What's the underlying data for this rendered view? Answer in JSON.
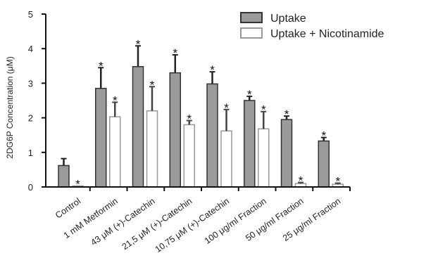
{
  "chart_data": {
    "type": "bar",
    "title": "",
    "xlabel": "",
    "ylabel": "2DG6P Concentration (μM)",
    "ylim": [
      0,
      5
    ],
    "yticks": [
      "0",
      "1",
      "2",
      "3",
      "4",
      "5"
    ],
    "grid": false,
    "legend_position": "top-right",
    "categories": [
      "Control",
      "1 mM Metformin",
      "43 μM (+)-Catechin",
      "21,5 μM (+)-Catechin",
      "10,75 μM (+)-Catechin",
      "100 μg/ml Fraction",
      "50 μg/ml Fraction",
      "25 μg/ml Fraction"
    ],
    "series": [
      {
        "name": "Uptake",
        "color": "#9a9a9a",
        "values": [
          0.62,
          2.85,
          3.48,
          3.3,
          2.98,
          2.5,
          1.95,
          1.33
        ],
        "errors": [
          0.2,
          0.6,
          0.6,
          0.52,
          0.35,
          0.12,
          0.1,
          0.1
        ],
        "significant": [
          false,
          true,
          true,
          true,
          true,
          true,
          true,
          true
        ]
      },
      {
        "name": "Uptake + Nicotinamide",
        "color": "#ffffff",
        "values": [
          0.03,
          2.03,
          2.2,
          1.8,
          1.62,
          1.68,
          0.1,
          0.08
        ],
        "errors": [
          0.0,
          0.42,
          0.7,
          0.12,
          0.62,
          0.5,
          0.03,
          0.03
        ],
        "significant": [
          true,
          true,
          true,
          true,
          true,
          true,
          true,
          true
        ]
      }
    ],
    "significance_marker": "*"
  }
}
